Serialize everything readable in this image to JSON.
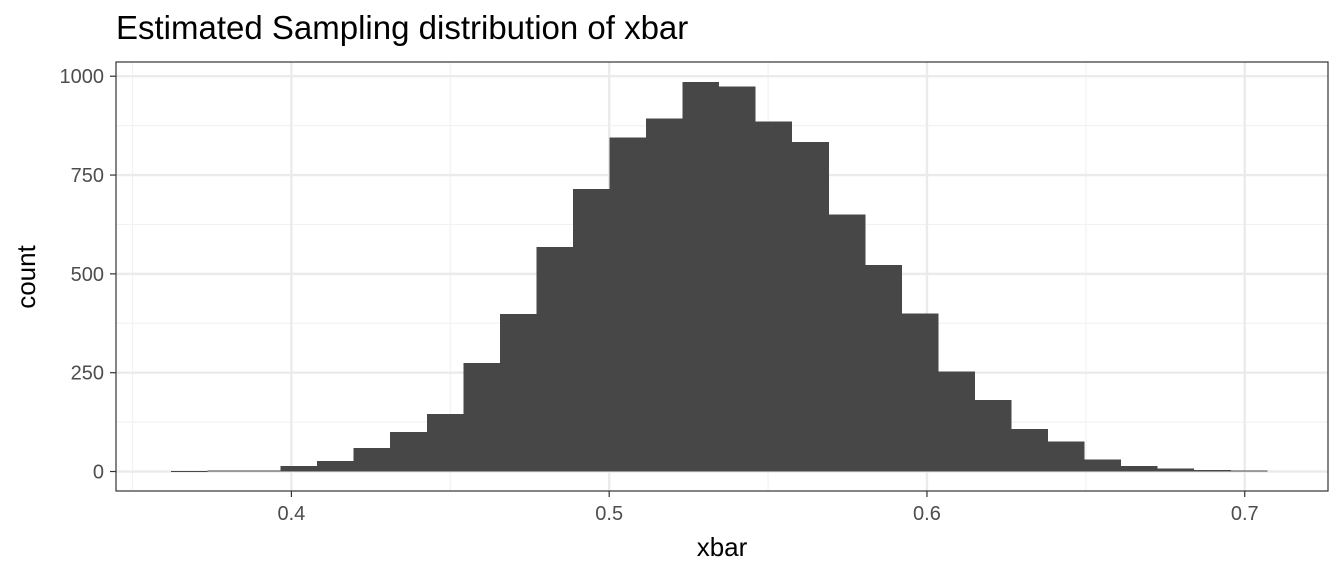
{
  "chart_data": {
    "type": "histogram",
    "title": "Estimated Sampling distribution of xbar",
    "xlabel": "xbar",
    "ylabel": "count",
    "xlim": [
      0.3448,
      0.7262
    ],
    "ylim": [
      -49.3,
      1036
    ],
    "x_ticks": [
      0.4,
      0.5,
      0.6,
      0.7
    ],
    "x_tick_labels": [
      "0.4",
      "0.5",
      "0.6",
      "0.7"
    ],
    "y_ticks": [
      0,
      250,
      500,
      750,
      1000
    ],
    "y_tick_labels": [
      "0",
      "250",
      "500",
      "750",
      "1000"
    ],
    "grid": true,
    "legend": "none",
    "bin_width": 0.0115,
    "bin_start": 0.3621,
    "values": [
      1,
      2,
      3,
      14,
      27,
      60,
      100,
      146,
      275,
      398,
      568,
      715,
      845,
      893,
      986,
      974,
      885,
      834,
      650,
      522,
      400,
      253,
      181,
      108,
      76,
      31,
      14,
      7,
      4,
      2
    ]
  },
  "colors": {
    "bar_fill": "#474747",
    "panel_border": "#333333",
    "grid_major": "#ebebeb",
    "grid_minor": "#f2f2f2",
    "tick_label": "#4d4d4d",
    "background": "#ffffff"
  }
}
